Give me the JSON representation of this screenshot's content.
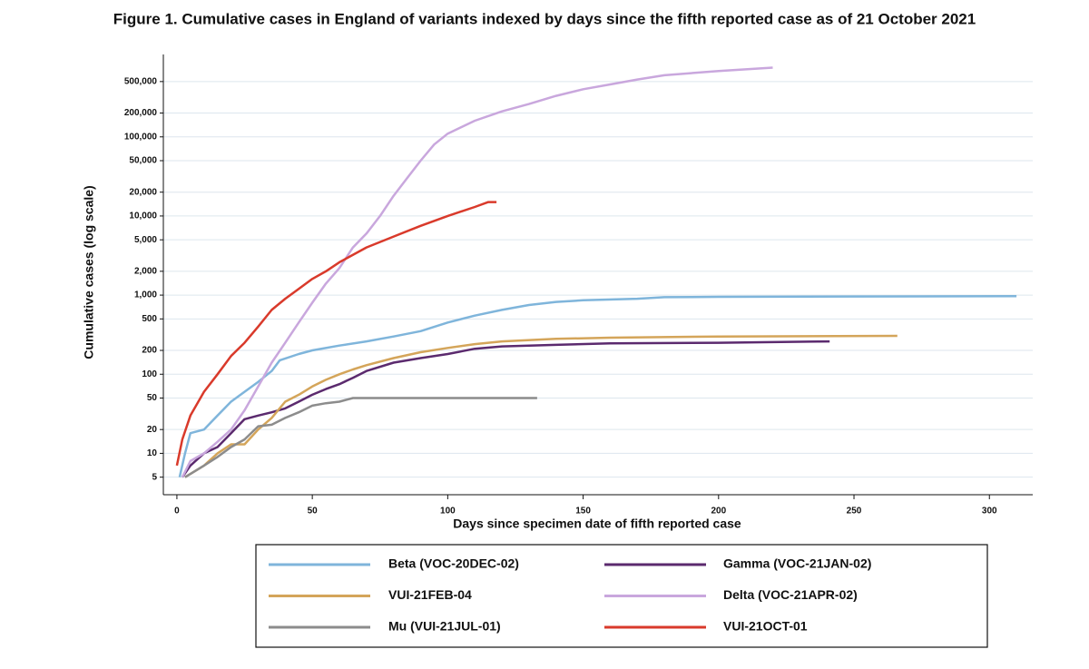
{
  "chart_data": {
    "type": "line",
    "title": "Figure 1. Cumulative cases in England of variants indexed by days since the fifth reported case as of 21 October 2021",
    "x_label": "Days since specimen date of fifth reported case",
    "y_label": "Cumulative cases (log scale)",
    "log_y": true,
    "grid": true,
    "xlim": [
      -5,
      316
    ],
    "ylim": [
      3,
      1100000
    ],
    "xticks": [
      0,
      50,
      100,
      150,
      200,
      250,
      300
    ],
    "yticks": [
      5,
      10,
      20,
      50,
      100,
      200,
      500,
      {
        "value": 1000,
        "label": "1,000"
      },
      {
        "value": 2000,
        "label": "2,000"
      },
      {
        "value": 5000,
        "label": "5,000"
      },
      {
        "value": 10000,
        "label": "10,000"
      },
      {
        "value": 20000,
        "label": "20,000"
      },
      {
        "value": 50000,
        "label": "50,000"
      },
      {
        "value": 100000,
        "label": "100,000"
      },
      {
        "value": 200000,
        "label": "200,000"
      },
      {
        "value": 500000,
        "label": "500,000"
      }
    ],
    "series": [
      {
        "name": "Beta (VOC-20DEC-02)",
        "color": "#7fb5db",
        "x": [
          1,
          3,
          5,
          10,
          15,
          20,
          25,
          30,
          35,
          38,
          45,
          50,
          60,
          70,
          80,
          90,
          100,
          110,
          120,
          130,
          140,
          150,
          170,
          180,
          200,
          250,
          310
        ],
        "values": [
          5,
          10,
          18,
          20,
          30,
          45,
          60,
          80,
          110,
          150,
          180,
          200,
          230,
          260,
          300,
          350,
          450,
          550,
          650,
          750,
          820,
          860,
          900,
          940,
          950,
          960,
          970
        ]
      },
      {
        "name": "Gamma (VOC-21JAN-02)",
        "color": "#5b2a6e",
        "x": [
          2,
          5,
          10,
          15,
          20,
          25,
          30,
          35,
          40,
          45,
          50,
          55,
          60,
          65,
          70,
          80,
          90,
          100,
          110,
          120,
          140,
          160,
          200,
          241
        ],
        "values": [
          5,
          7,
          10,
          12,
          18,
          27,
          30,
          33,
          37,
          45,
          55,
          65,
          75,
          90,
          110,
          140,
          160,
          180,
          210,
          225,
          235,
          245,
          250,
          260
        ]
      },
      {
        "name": "VUI-21FEB-04",
        "color": "#d4a55a",
        "x": [
          3,
          10,
          15,
          20,
          25,
          30,
          35,
          40,
          45,
          50,
          55,
          60,
          65,
          70,
          80,
          90,
          100,
          110,
          120,
          140,
          160,
          200,
          266
        ],
        "values": [
          5,
          7,
          10,
          13,
          13,
          20,
          28,
          45,
          55,
          70,
          85,
          100,
          115,
          130,
          160,
          190,
          215,
          240,
          260,
          280,
          290,
          300,
          305
        ]
      },
      {
        "name": "Delta (VOC-21APR-02)",
        "color": "#c9a7dd",
        "x": [
          2,
          5,
          10,
          15,
          20,
          25,
          30,
          35,
          40,
          45,
          50,
          55,
          60,
          65,
          70,
          75,
          80,
          85,
          90,
          95,
          100,
          110,
          120,
          130,
          140,
          150,
          160,
          170,
          180,
          200,
          220
        ],
        "values": [
          5,
          8,
          10,
          14,
          20,
          35,
          70,
          140,
          250,
          450,
          800,
          1400,
          2200,
          4000,
          6000,
          10000,
          18000,
          30000,
          50000,
          80000,
          110000,
          160000,
          210000,
          260000,
          330000,
          400000,
          460000,
          530000,
          600000,
          680000,
          750000
        ]
      },
      {
        "name": "Mu (VUI-21JUL-01)",
        "color": "#8c8c8c",
        "x": [
          3,
          10,
          15,
          20,
          25,
          30,
          35,
          40,
          45,
          50,
          55,
          60,
          65,
          133
        ],
        "values": [
          5,
          7,
          9,
          12,
          15,
          22,
          23,
          28,
          33,
          40,
          43,
          45,
          50,
          50
        ]
      },
      {
        "name": "VUI-21OCT-01",
        "color": "#d93a2b",
        "x": [
          0,
          2,
          5,
          10,
          15,
          20,
          25,
          30,
          35,
          40,
          45,
          50,
          55,
          60,
          70,
          80,
          90,
          100,
          110,
          115,
          118
        ],
        "values": [
          7,
          15,
          30,
          60,
          100,
          170,
          250,
          400,
          650,
          900,
          1200,
          1600,
          2000,
          2600,
          4000,
          5500,
          7500,
          10000,
          13000,
          15000,
          15000
        ]
      }
    ]
  }
}
